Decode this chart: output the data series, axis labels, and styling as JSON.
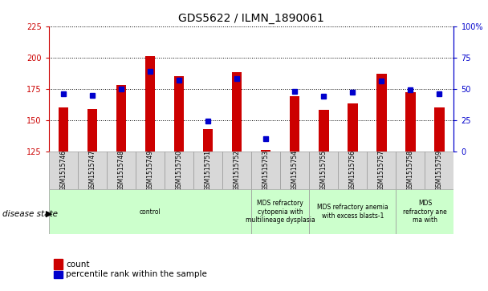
{
  "title": "GDS5622 / ILMN_1890061",
  "samples": [
    "GSM1515746",
    "GSM1515747",
    "GSM1515748",
    "GSM1515749",
    "GSM1515750",
    "GSM1515751",
    "GSM1515752",
    "GSM1515753",
    "GSM1515754",
    "GSM1515755",
    "GSM1515756",
    "GSM1515757",
    "GSM1515758",
    "GSM1515759"
  ],
  "count_values": [
    160,
    159,
    178,
    201,
    185,
    143,
    188,
    126,
    169,
    158,
    163,
    187,
    172,
    160
  ],
  "percentile_values": [
    46,
    45,
    50,
    64,
    57,
    24,
    58,
    10,
    48,
    44,
    47,
    56,
    49,
    46
  ],
  "ylim_left": [
    125,
    225
  ],
  "ylim_right": [
    0,
    100
  ],
  "yticks_left": [
    125,
    150,
    175,
    200,
    225
  ],
  "yticks_right": [
    0,
    25,
    50,
    75,
    100
  ],
  "bar_color": "#cc0000",
  "dot_color": "#0000cc",
  "bg_color": "#ffffff",
  "left_axis_color": "#cc0000",
  "right_axis_color": "#0000cc",
  "disease_groups": [
    {
      "label": "control",
      "start": 0,
      "end": 7
    },
    {
      "label": "MDS refractory\ncytopenia with\nmultilineage dysplasia",
      "start": 7,
      "end": 9
    },
    {
      "label": "MDS refractory anemia\nwith excess blasts-1",
      "start": 9,
      "end": 12
    },
    {
      "label": "MDS\nrefractory ane\nma with",
      "start": 12,
      "end": 14
    }
  ],
  "disease_group_color": "#ccffcc",
  "sample_box_color": "#d8d8d8",
  "disease_state_label": "disease state",
  "legend_count": "count",
  "legend_pct": "percentile rank within the sample",
  "bar_width": 0.35
}
